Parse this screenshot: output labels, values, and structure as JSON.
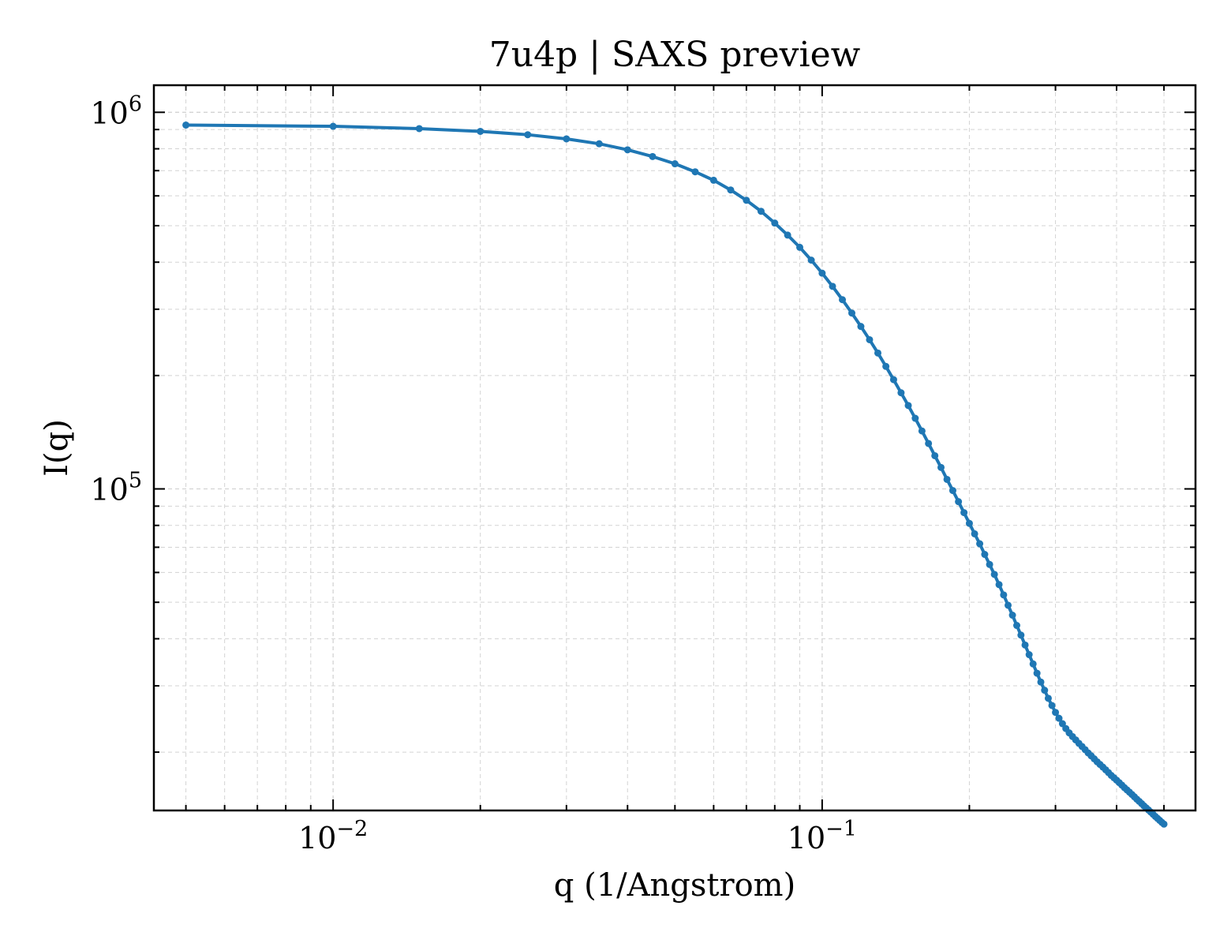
{
  "chart_data": {
    "type": "line",
    "title": "7u4p | SAXS preview",
    "xlabel": "q (1/Angstrom)",
    "ylabel": "I(q)",
    "x_scale": "log",
    "y_scale": "log",
    "xlim": [
      0.0043,
      0.58
    ],
    "ylim": [
      14000,
      1180000
    ],
    "grid": true,
    "legend": "none",
    "colors": {
      "series": "#1f77b4",
      "grid": "#d3d3d3",
      "axis": "#000000"
    },
    "x_ticks": [
      {
        "value": 0.01,
        "label": "10",
        "exp": "−2"
      },
      {
        "value": 0.1,
        "label": "10",
        "exp": "−1"
      }
    ],
    "y_ticks": [
      {
        "value": 100000,
        "label": "10",
        "exp": "5"
      },
      {
        "value": 1000000,
        "label": "10",
        "exp": "6"
      }
    ],
    "series": [
      {
        "marker": "circle",
        "x": [
          0.005,
          0.01,
          0.015,
          0.02,
          0.025,
          0.03,
          0.035,
          0.04,
          0.045,
          0.05,
          0.055,
          0.06,
          0.065,
          0.07,
          0.075,
          0.08,
          0.085,
          0.09,
          0.095,
          0.1,
          0.105,
          0.11,
          0.115,
          0.12,
          0.125,
          0.13,
          0.135,
          0.14,
          0.145,
          0.15,
          0.155,
          0.16,
          0.165,
          0.17,
          0.175,
          0.18,
          0.185,
          0.19,
          0.195,
          0.2,
          0.205,
          0.21,
          0.215,
          0.22,
          0.225,
          0.23,
          0.235,
          0.24,
          0.245,
          0.25,
          0.255,
          0.26,
          0.265,
          0.27,
          0.275,
          0.28,
          0.285,
          0.29,
          0.295,
          0.3,
          0.305,
          0.31,
          0.315,
          0.32,
          0.325,
          0.33,
          0.335,
          0.34,
          0.345,
          0.35,
          0.355,
          0.36,
          0.365,
          0.37,
          0.375,
          0.38,
          0.385,
          0.39,
          0.395,
          0.4,
          0.405,
          0.41,
          0.415,
          0.42,
          0.425,
          0.43,
          0.435,
          0.44,
          0.445,
          0.45,
          0.455,
          0.46,
          0.465,
          0.47,
          0.475,
          0.48,
          0.485,
          0.49,
          0.495,
          0.5
        ],
        "y": [
          925000,
          918000,
          905000,
          890000,
          872000,
          850000,
          825000,
          795000,
          763000,
          730000,
          695000,
          660000,
          622000,
          584000,
          546000,
          508000,
          472000,
          438000,
          405000,
          374000,
          345000,
          318000,
          293000,
          270000,
          249000,
          229500,
          211500,
          195000,
          180000,
          166500,
          154000,
          142500,
          132000,
          122500,
          114000,
          106000,
          99000,
          92500,
          86500,
          81000,
          76000,
          71500,
          67000,
          63000,
          59300,
          55700,
          52300,
          49100,
          46200,
          43400,
          40900,
          38500,
          36300,
          34300,
          32400,
          30700,
          29200,
          27800,
          26600,
          25500,
          24600,
          23800,
          23100,
          22500,
          22000,
          21550,
          21100,
          20700,
          20300,
          19900,
          19550,
          19200,
          18850,
          18550,
          18250,
          17950,
          17650,
          17350,
          17100,
          16850,
          16600,
          16350,
          16100,
          15880,
          15660,
          15440,
          15220,
          15000,
          14800,
          14600,
          14400,
          14220,
          14040,
          13860,
          13680,
          13500,
          13340,
          13180,
          13020,
          12880
        ]
      }
    ]
  }
}
